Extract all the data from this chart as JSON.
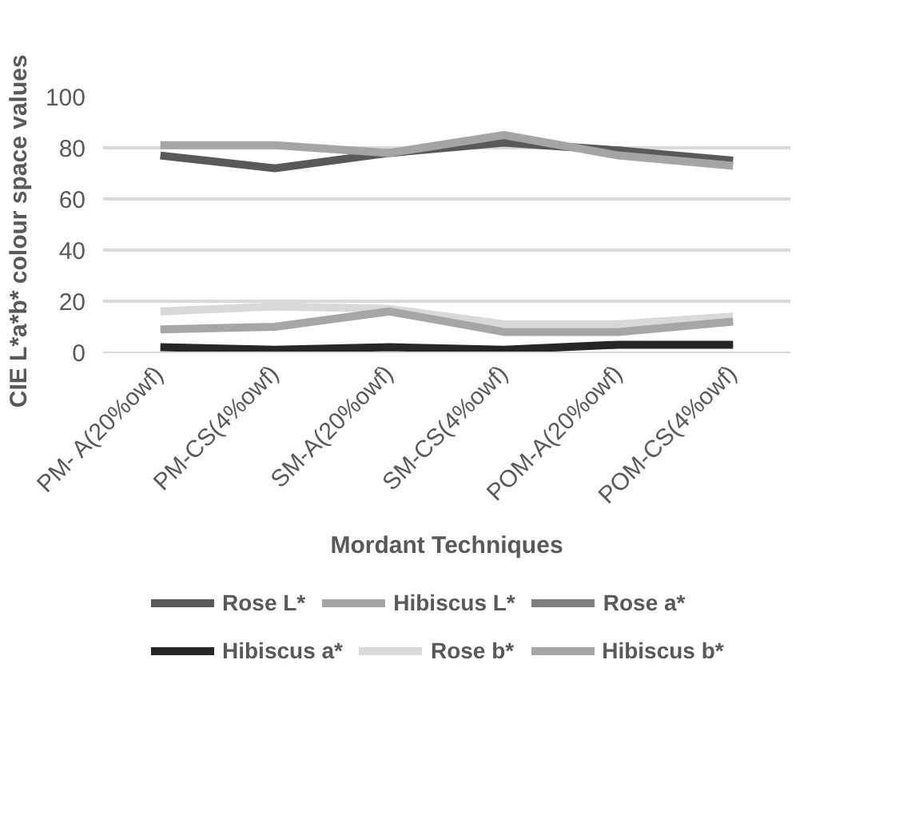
{
  "chart_data": {
    "type": "line",
    "xlabel": "Mordant Techniques",
    "ylabel": "CIE  L*a*b*  colour space values",
    "categories": [
      "PM- A(20%owf)",
      "PM-CS(4%owf)",
      "SM-A(20%owf)",
      "SM-CS(4%owf)",
      "POM-A(20%owf)",
      "POM-CS(4%owf)"
    ],
    "series": [
      {
        "name": "Rose L*",
        "color": "#595959",
        "values": [
          77,
          72,
          78,
          82,
          79,
          75
        ]
      },
      {
        "name": "Hibiscus L*",
        "color": "#a5a5a5",
        "values": [
          81,
          81,
          78,
          85,
          77,
          73
        ]
      },
      {
        "name": "Rose a*",
        "color": "#7f7f7f",
        "values": [
          null,
          null,
          null,
          null,
          null,
          null
        ]
      },
      {
        "name": "Hibiscus a*",
        "color": "#262626",
        "values": [
          2,
          1,
          2,
          1,
          3,
          3
        ]
      },
      {
        "name": "Rose b*",
        "color": "#d9d9d9",
        "values": [
          16,
          18,
          17,
          11,
          11,
          14
        ]
      },
      {
        "name": "Hibiscus b*",
        "color": "#a6a6a6",
        "values": [
          9,
          10,
          16,
          8,
          8,
          12
        ]
      }
    ],
    "ylim": [
      0,
      100
    ],
    "yticks": [
      0,
      20,
      40,
      60,
      80,
      100
    ],
    "grid": "y",
    "legend": "bottom",
    "marker": "none",
    "line_style": "solid"
  }
}
